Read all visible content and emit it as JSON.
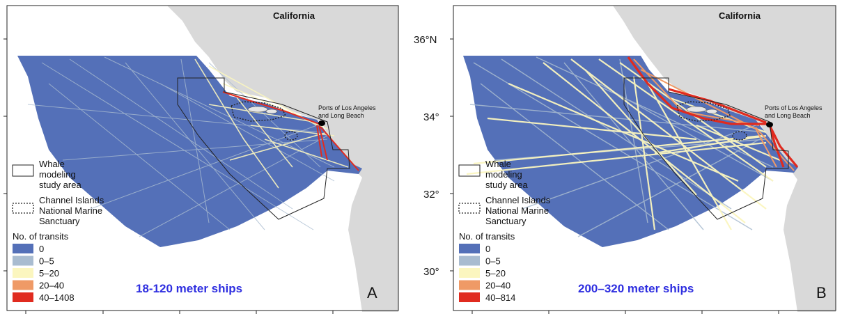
{
  "panels": [
    {
      "letter": "A",
      "state_label": "California",
      "ports_label_line1": "Ports of Los Angeles",
      "ports_label_line2": "and Long Beach",
      "caption": "18-120 meter ships",
      "legend": {
        "study_area_line1": "Whale",
        "study_area_line2": "modeling",
        "study_area_line3": "study area",
        "sanctuary_line1": "Channel Islands",
        "sanctuary_line2": "National Marine",
        "sanctuary_line3": "Sanctuary",
        "title": "No. of transits",
        "bins": [
          {
            "label": "0",
            "color": "#5470b8"
          },
          {
            "label": "0–5",
            "color": "#a9bcd0"
          },
          {
            "label": "5–20",
            "color": "#fbf6bf"
          },
          {
            "label": "20–40",
            "color": "#ef9a66"
          },
          {
            "label": "40–1408",
            "color": "#e02b1f"
          }
        ]
      }
    },
    {
      "letter": "B",
      "state_label": "California",
      "ports_label_line1": "Ports of Los Angeles",
      "ports_label_line2": "and Long Beach",
      "caption": "200–320 meter ships",
      "latitude_labels": [
        "36°N",
        "34°",
        "32°",
        "30°"
      ],
      "legend": {
        "study_area_line1": "Whale",
        "study_area_line2": "modeling",
        "study_area_line3": "study area",
        "sanctuary_line1": "Channel Islands",
        "sanctuary_line2": "National Marine",
        "sanctuary_line3": "Sanctuary",
        "title": "No. of transits",
        "bins": [
          {
            "label": "0",
            "color": "#5470b8"
          },
          {
            "label": "0–5",
            "color": "#a9bcd0"
          },
          {
            "label": "5–20",
            "color": "#fbf6bf"
          },
          {
            "label": "20–40",
            "color": "#ef9a66"
          },
          {
            "label": "40–814",
            "color": "#e02b1f"
          }
        ]
      }
    }
  ],
  "colors": {
    "ocean": "#ffffff",
    "land": "#d9d9d9",
    "study_area_fill": "#5470b8",
    "caption": "#2f2fe0"
  }
}
